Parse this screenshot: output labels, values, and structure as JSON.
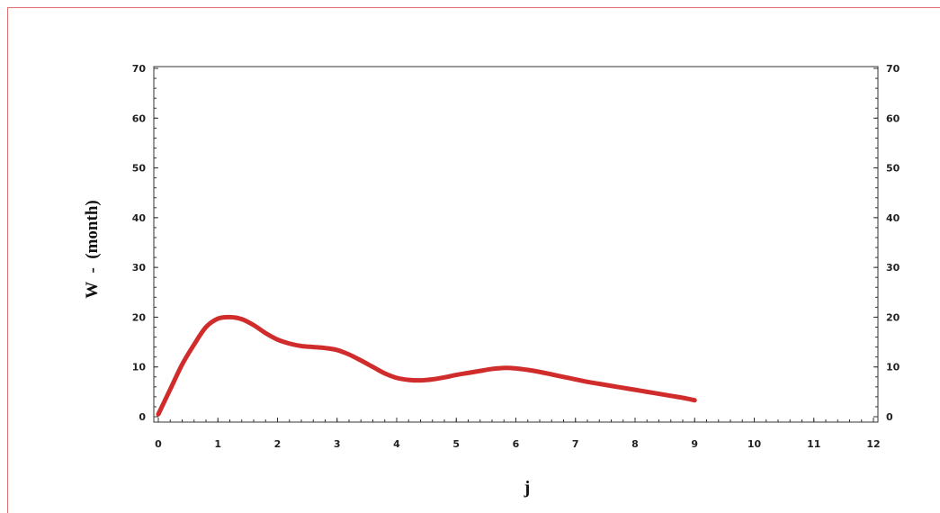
{
  "chart_data": {
    "type": "line",
    "title": "",
    "xlabel": "j",
    "ylabel": "W  -  (month)",
    "xlim": [
      0,
      12
    ],
    "ylim": [
      0,
      70
    ],
    "x_ticks": [
      0,
      1,
      2,
      3,
      4,
      5,
      6,
      7,
      8,
      9,
      10,
      11,
      12
    ],
    "y_ticks": [
      0,
      10,
      20,
      30,
      40,
      50,
      60,
      70
    ],
    "y_ticks_right": [
      0,
      10,
      20,
      30,
      40,
      50,
      60,
      70
    ],
    "grid": false,
    "legend": "none",
    "series": [
      {
        "color": "#cc1a1a",
        "x": [
          0,
          0.2,
          0.4,
          0.6,
          0.8,
          1.0,
          1.2,
          1.4,
          1.6,
          1.8,
          2.0,
          2.2,
          2.4,
          2.6,
          2.8,
          3.0,
          3.2,
          3.4,
          3.6,
          3.8,
          4.0,
          4.2,
          4.4,
          4.6,
          4.8,
          5.0,
          5.2,
          5.4,
          5.6,
          5.8,
          6.0,
          6.2,
          6.4,
          6.6,
          6.8,
          7.0,
          7.2,
          7.4,
          7.6,
          7.8,
          8.0,
          8.2,
          8.4,
          8.6,
          8.8,
          9.0
        ],
        "y": [
          0.5,
          5.5,
          10.5,
          14.5,
          18.0,
          19.7,
          20.0,
          19.6,
          18.4,
          16.8,
          15.5,
          14.7,
          14.2,
          14.0,
          13.8,
          13.4,
          12.5,
          11.3,
          10.0,
          8.7,
          7.8,
          7.4,
          7.3,
          7.5,
          7.9,
          8.4,
          8.8,
          9.2,
          9.6,
          9.8,
          9.7,
          9.4,
          9.0,
          8.5,
          8.0,
          7.5,
          7.0,
          6.6,
          6.2,
          5.8,
          5.4,
          5.0,
          4.6,
          4.2,
          3.8,
          3.3
        ]
      }
    ]
  }
}
